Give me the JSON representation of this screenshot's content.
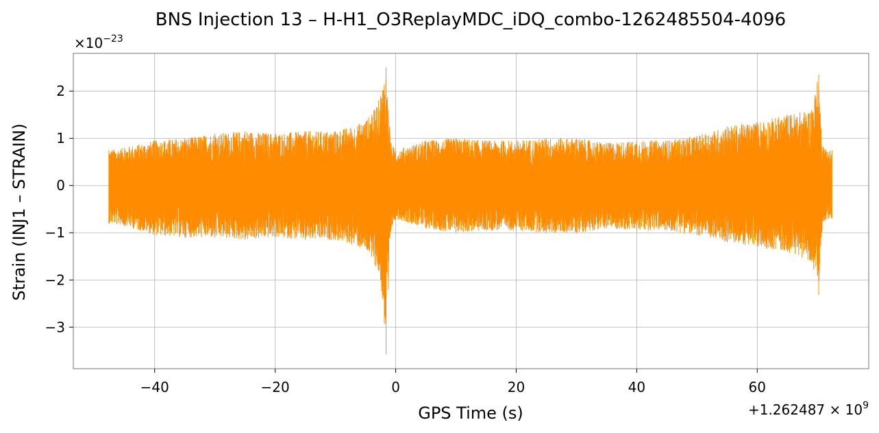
{
  "chart_data": {
    "type": "line",
    "title": "BNS Injection 13 – H-H1_O3ReplayMDC_iDQ_combo-1262485504-4096",
    "xlabel": "GPS Time (s)",
    "ylabel": "Strain (INJ1 – STRAIN)",
    "x_offset_label": "+1.262487 × 10",
    "x_offset_exponent": "9",
    "y_scale_label": "×10",
    "y_scale_exponent": "−23",
    "xlim": [
      -53.5,
      78.5
    ],
    "ylim": [
      -3.88,
      2.8
    ],
    "grid": true,
    "series_color": "#ff8c00",
    "x_ticks": [
      {
        "value": -40,
        "label": "−40"
      },
      {
        "value": -20,
        "label": "−20"
      },
      {
        "value": 0,
        "label": "0"
      },
      {
        "value": 20,
        "label": "20"
      },
      {
        "value": 40,
        "label": "40"
      },
      {
        "value": 60,
        "label": "60"
      }
    ],
    "y_ticks": [
      {
        "value": 2,
        "label": "2"
      },
      {
        "value": 1,
        "label": "1"
      },
      {
        "value": 0,
        "label": "0"
      },
      {
        "value": -1,
        "label": "−1"
      },
      {
        "value": -2,
        "label": "−2"
      },
      {
        "value": -3,
        "label": "−3"
      }
    ],
    "series": [
      {
        "x_range": [
          -47.6,
          72.4
        ],
        "envelope": {
          "x": [
            -47.6,
            -45,
            -40,
            -35,
            -30,
            -25,
            -20,
            -15,
            -10,
            -6,
            -4,
            -2.5,
            -1.6,
            -1.2,
            -0.8,
            0,
            5,
            10,
            15,
            20,
            25,
            30,
            35,
            40,
            45,
            50,
            55,
            60,
            65,
            69,
            70.2,
            70.6,
            71,
            72.4
          ],
          "upper": [
            0.75,
            0.8,
            0.95,
            1.0,
            1.1,
            1.15,
            1.1,
            1.15,
            1.15,
            1.3,
            1.5,
            1.9,
            2.5,
            1.6,
            0.9,
            0.75,
            0.95,
            1.0,
            0.95,
            0.95,
            1.0,
            1.0,
            0.9,
            0.95,
            0.95,
            1.05,
            1.25,
            1.35,
            1.5,
            1.6,
            2.35,
            1.2,
            0.8,
            0.75
          ],
          "lower": [
            -0.8,
            -0.85,
            -1.05,
            -1.1,
            -1.1,
            -1.15,
            -1.1,
            -1.15,
            -1.15,
            -1.3,
            -1.5,
            -2.0,
            -3.58,
            -2.2,
            -0.95,
            -0.7,
            -0.9,
            -1.0,
            -0.95,
            -0.95,
            -1.0,
            -1.0,
            -0.9,
            -0.95,
            -0.95,
            -1.05,
            -1.2,
            -1.3,
            -1.4,
            -1.6,
            -2.32,
            -1.1,
            -0.75,
            -0.7
          ]
        }
      }
    ]
  }
}
